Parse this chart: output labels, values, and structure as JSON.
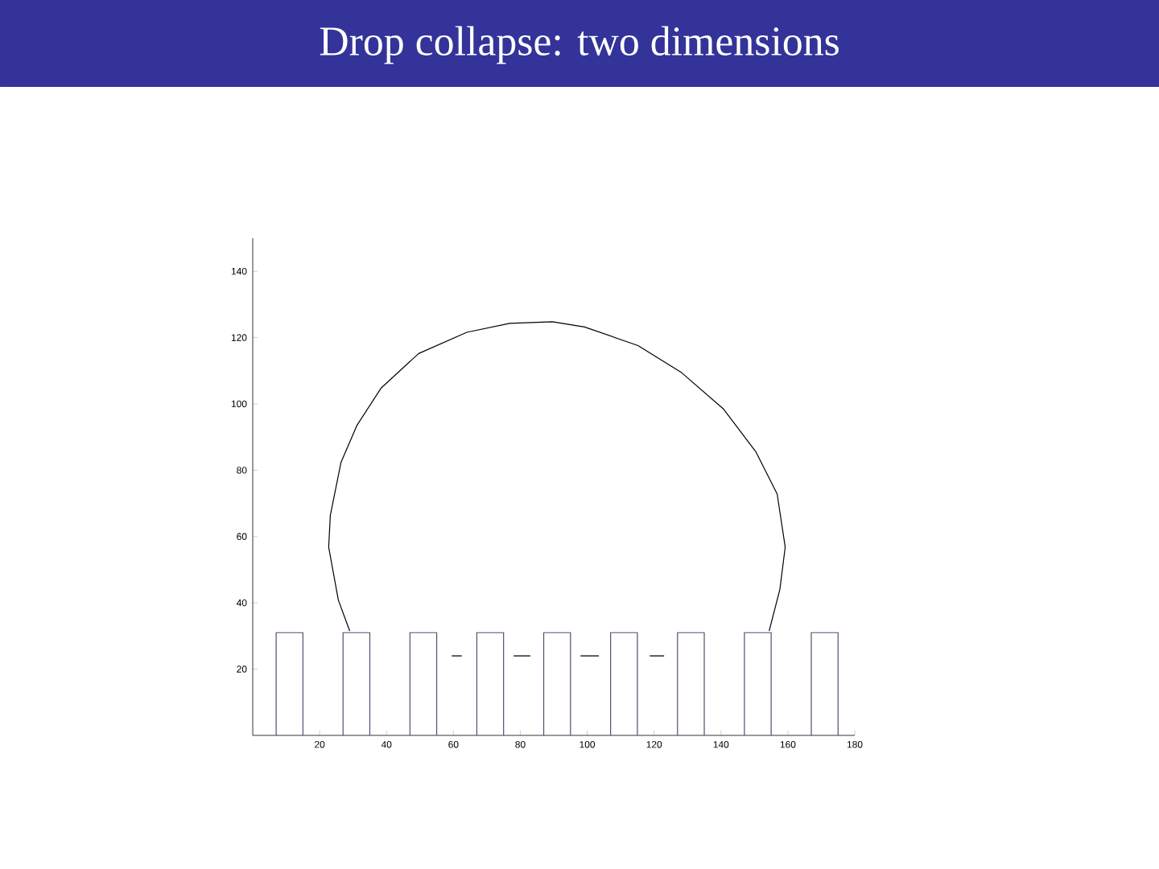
{
  "chart_data": {
    "type": "line",
    "title": "Drop collapse: two dimensions",
    "xlim": [
      0,
      180
    ],
    "ylim": [
      0,
      150
    ],
    "xticks": [
      20,
      40,
      60,
      80,
      100,
      120,
      140,
      160,
      180
    ],
    "yticks": [
      20,
      40,
      60,
      80,
      100,
      120,
      140
    ],
    "series": [
      {
        "color": "#000000",
        "x": [
          29,
          25.6,
          22.7,
          23.2,
          26.4,
          31.2,
          38.4,
          49.6,
          64,
          76.8,
          89.6,
          99.2,
          115.2,
          128,
          140.8,
          150.4,
          156.8,
          159.2,
          157.6,
          154.4,
          null,
          59.5,
          62.5,
          null,
          78,
          83,
          null,
          98,
          103.5,
          null,
          118.7,
          123
        ],
        "values": [
          31.5,
          40.8,
          56.8,
          66.4,
          82.4,
          93.6,
          104.8,
          115.2,
          121.6,
          124.3,
          124.8,
          123.2,
          117.6,
          109.6,
          98.4,
          85.6,
          72.8,
          56.8,
          44,
          31.5,
          null,
          24,
          24,
          null,
          24,
          24,
          null,
          24,
          24,
          null,
          24,
          24
        ]
      },
      {
        "color": "#505070",
        "x": [
          7,
          7,
          15,
          15,
          null,
          27,
          27,
          35,
          35,
          null,
          47,
          47,
          55,
          55,
          null,
          67,
          67,
          75,
          75,
          null,
          87,
          87,
          95,
          95,
          null,
          107,
          107,
          115,
          115,
          null,
          127,
          127,
          135,
          135,
          null,
          147,
          147,
          155,
          155,
          null,
          167,
          167,
          175,
          175
        ],
        "values": [
          0,
          31,
          31,
          0,
          null,
          0,
          31,
          31,
          0,
          null,
          0,
          31,
          31,
          0,
          null,
          0,
          31,
          31,
          0,
          null,
          0,
          31,
          31,
          0,
          null,
          0,
          31,
          31,
          0,
          null,
          0,
          31,
          31,
          0,
          null,
          0,
          31,
          31,
          0,
          null,
          0,
          31,
          31,
          0
        ]
      }
    ]
  }
}
